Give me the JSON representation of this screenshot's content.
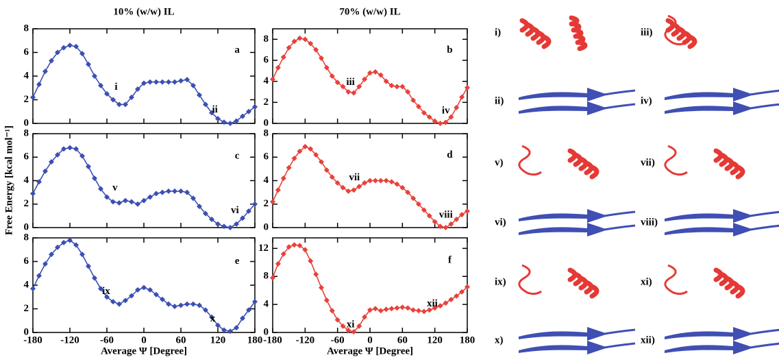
{
  "column_titles": [
    "10% (w/w) IL",
    "70% (w/w) IL"
  ],
  "y_label": "Free Energy [kcal mol⁻¹]",
  "structures": [
    "i)",
    "iii)",
    "ii)",
    "iv)",
    "v)",
    "vii)",
    "vi)",
    "viii)",
    "ix)",
    "xi)",
    "x)",
    "xii)"
  ],
  "chart_data": [
    {
      "type": "line",
      "annotations": [
        "a",
        "i",
        "ii"
      ],
      "color": "#3b4fb3",
      "show_xtick_labels": false,
      "x": [
        -180,
        -170,
        -160,
        -150,
        -140,
        -130,
        -120,
        -110,
        -100,
        -90,
        -80,
        -70,
        -60,
        -50,
        -40,
        -30,
        -20,
        -10,
        0,
        10,
        20,
        30,
        40,
        50,
        60,
        70,
        80,
        90,
        100,
        110,
        120,
        130,
        140,
        150,
        160,
        170,
        180
      ],
      "values": [
        2.2,
        3.3,
        4.4,
        5.3,
        6.0,
        6.4,
        6.6,
        6.5,
        5.9,
        5.0,
        4.0,
        3.2,
        2.5,
        2.0,
        1.6,
        1.6,
        2.2,
        2.9,
        3.4,
        3.5,
        3.5,
        3.5,
        3.5,
        3.5,
        3.6,
        3.7,
        3.2,
        2.4,
        1.6,
        0.9,
        0.4,
        0.1,
        0.0,
        0.2,
        0.6,
        1.0,
        1.4
      ],
      "xlim": [
        -180,
        180
      ],
      "xticks": [
        -180,
        -120,
        -60,
        0,
        60,
        120,
        180
      ],
      "ylim": [
        0,
        8
      ],
      "yticks": [
        0,
        2,
        4,
        6,
        8
      ]
    },
    {
      "type": "line",
      "annotations": [
        "b",
        "iii",
        "iv"
      ],
      "color": "#e8413a",
      "show_xtick_labels": false,
      "x": [
        -180,
        -170,
        -160,
        -150,
        -140,
        -130,
        -120,
        -110,
        -100,
        -90,
        -80,
        -70,
        -60,
        -50,
        -40,
        -30,
        -20,
        -10,
        0,
        10,
        20,
        30,
        40,
        50,
        60,
        70,
        80,
        90,
        100,
        110,
        120,
        130,
        140,
        150,
        160,
        170,
        180
      ],
      "values": [
        4.2,
        5.3,
        6.3,
        7.2,
        7.8,
        8.1,
        8.0,
        7.6,
        7.0,
        6.2,
        5.3,
        4.5,
        3.9,
        3.5,
        3.0,
        2.9,
        3.5,
        4.2,
        4.8,
        4.9,
        4.6,
        4.0,
        3.6,
        3.5,
        3.5,
        3.0,
        2.2,
        1.6,
        1.0,
        0.6,
        0.2,
        0.0,
        0.1,
        0.6,
        1.5,
        2.5,
        3.4
      ],
      "xlim": [
        -180,
        180
      ],
      "xticks": [
        -180,
        -120,
        -60,
        0,
        60,
        120,
        180
      ],
      "ylim": [
        0,
        9
      ],
      "yticks": [
        0,
        2,
        4,
        6,
        8
      ]
    },
    {
      "type": "line",
      "annotations": [
        "c",
        "v",
        "vi"
      ],
      "color": "#3b4fb3",
      "show_xtick_labels": false,
      "x": [
        -180,
        -170,
        -160,
        -150,
        -140,
        -130,
        -120,
        -110,
        -100,
        -90,
        -80,
        -70,
        -60,
        -50,
        -40,
        -30,
        -20,
        -10,
        0,
        10,
        20,
        30,
        40,
        50,
        60,
        70,
        80,
        90,
        100,
        110,
        120,
        130,
        140,
        150,
        160,
        170,
        180
      ],
      "values": [
        2.9,
        3.9,
        4.8,
        5.6,
        6.2,
        6.7,
        6.8,
        6.7,
        6.1,
        5.2,
        4.2,
        3.3,
        2.6,
        2.2,
        2.1,
        2.3,
        2.2,
        2.0,
        2.3,
        2.6,
        2.9,
        3.0,
        3.1,
        3.1,
        3.1,
        3.0,
        2.5,
        1.8,
        1.2,
        0.7,
        0.3,
        0.1,
        0.0,
        0.3,
        0.8,
        1.4,
        2.0
      ],
      "xlim": [
        -180,
        180
      ],
      "xticks": [
        -180,
        -120,
        -60,
        0,
        60,
        120,
        180
      ],
      "ylim": [
        0,
        8
      ],
      "yticks": [
        0,
        2,
        4,
        6,
        8
      ]
    },
    {
      "type": "line",
      "annotations": [
        "d",
        "vii",
        "viii"
      ],
      "color": "#e8413a",
      "show_xtick_labels": false,
      "x": [
        -180,
        -170,
        -160,
        -150,
        -140,
        -130,
        -120,
        -110,
        -100,
        -90,
        -80,
        -70,
        -60,
        -50,
        -40,
        -30,
        -20,
        -10,
        0,
        10,
        20,
        30,
        40,
        50,
        60,
        70,
        80,
        90,
        100,
        110,
        120,
        130,
        140,
        150,
        160,
        170,
        180
      ],
      "values": [
        2.2,
        3.2,
        4.2,
        5.1,
        5.9,
        6.5,
        6.9,
        6.7,
        6.2,
        5.6,
        4.9,
        4.3,
        3.8,
        3.4,
        3.1,
        3.2,
        3.5,
        3.8,
        4.0,
        4.0,
        4.0,
        4.0,
        3.9,
        3.7,
        3.4,
        3.0,
        2.5,
        2.0,
        1.5,
        1.0,
        0.5,
        0.1,
        0.0,
        0.3,
        0.7,
        1.1,
        1.4
      ],
      "xlim": [
        -180,
        180
      ],
      "xticks": [
        -180,
        -120,
        -60,
        0,
        60,
        120,
        180
      ],
      "ylim": [
        0,
        8
      ],
      "yticks": [
        0,
        2,
        4,
        6,
        8
      ]
    },
    {
      "type": "line",
      "annotations": [
        "e",
        "ix",
        "x"
      ],
      "color": "#3b4fb3",
      "show_xtick_labels": true,
      "x_label": "Average Ψ [Degree]",
      "x": [
        -180,
        -170,
        -160,
        -150,
        -140,
        -130,
        -120,
        -110,
        -100,
        -90,
        -80,
        -70,
        -60,
        -50,
        -40,
        -30,
        -20,
        -10,
        0,
        10,
        20,
        30,
        40,
        50,
        60,
        70,
        80,
        90,
        100,
        110,
        120,
        130,
        140,
        150,
        160,
        170,
        180
      ],
      "values": [
        3.7,
        4.8,
        5.8,
        6.6,
        7.2,
        7.6,
        7.8,
        7.4,
        6.6,
        5.6,
        4.6,
        3.7,
        3.0,
        2.6,
        2.4,
        2.7,
        3.1,
        3.6,
        3.8,
        3.6,
        3.2,
        2.8,
        2.4,
        2.2,
        2.3,
        2.4,
        2.4,
        2.3,
        1.9,
        1.3,
        0.6,
        0.2,
        0.1,
        0.4,
        1.2,
        1.9,
        2.6
      ],
      "xlim": [
        -180,
        180
      ],
      "xticks": [
        -180,
        -120,
        -60,
        0,
        60,
        120,
        180
      ],
      "ylim": [
        0,
        8
      ],
      "yticks": [
        0,
        2,
        4,
        6,
        8
      ]
    },
    {
      "type": "line",
      "annotations": [
        "f",
        "xi",
        "xii"
      ],
      "color": "#e8413a",
      "show_xtick_labels": true,
      "x_label": "Average Ψ [Degree]",
      "x": [
        -180,
        -170,
        -160,
        -150,
        -140,
        -130,
        -120,
        -110,
        -100,
        -90,
        -80,
        -70,
        -60,
        -50,
        -40,
        -30,
        -20,
        -10,
        0,
        10,
        20,
        30,
        40,
        50,
        60,
        70,
        80,
        90,
        100,
        110,
        120,
        130,
        140,
        150,
        160,
        170,
        180
      ],
      "values": [
        7.8,
        9.8,
        11.2,
        12.2,
        12.5,
        12.4,
        11.8,
        10.2,
        8.3,
        6.4,
        4.6,
        3.1,
        1.8,
        0.9,
        0.3,
        0.1,
        0.9,
        2.2,
        3.2,
        3.4,
        3.1,
        3.3,
        3.4,
        3.5,
        3.6,
        3.5,
        3.2,
        3.1,
        3.0,
        3.2,
        3.5,
        3.8,
        4.2,
        4.7,
        5.2,
        5.8,
        6.5
      ],
      "xlim": [
        -180,
        180
      ],
      "xticks": [
        -180,
        -120,
        -60,
        0,
        60,
        120,
        180
      ],
      "ylim": [
        0,
        13.5
      ],
      "yticks": [
        0,
        4,
        8,
        12
      ]
    }
  ]
}
